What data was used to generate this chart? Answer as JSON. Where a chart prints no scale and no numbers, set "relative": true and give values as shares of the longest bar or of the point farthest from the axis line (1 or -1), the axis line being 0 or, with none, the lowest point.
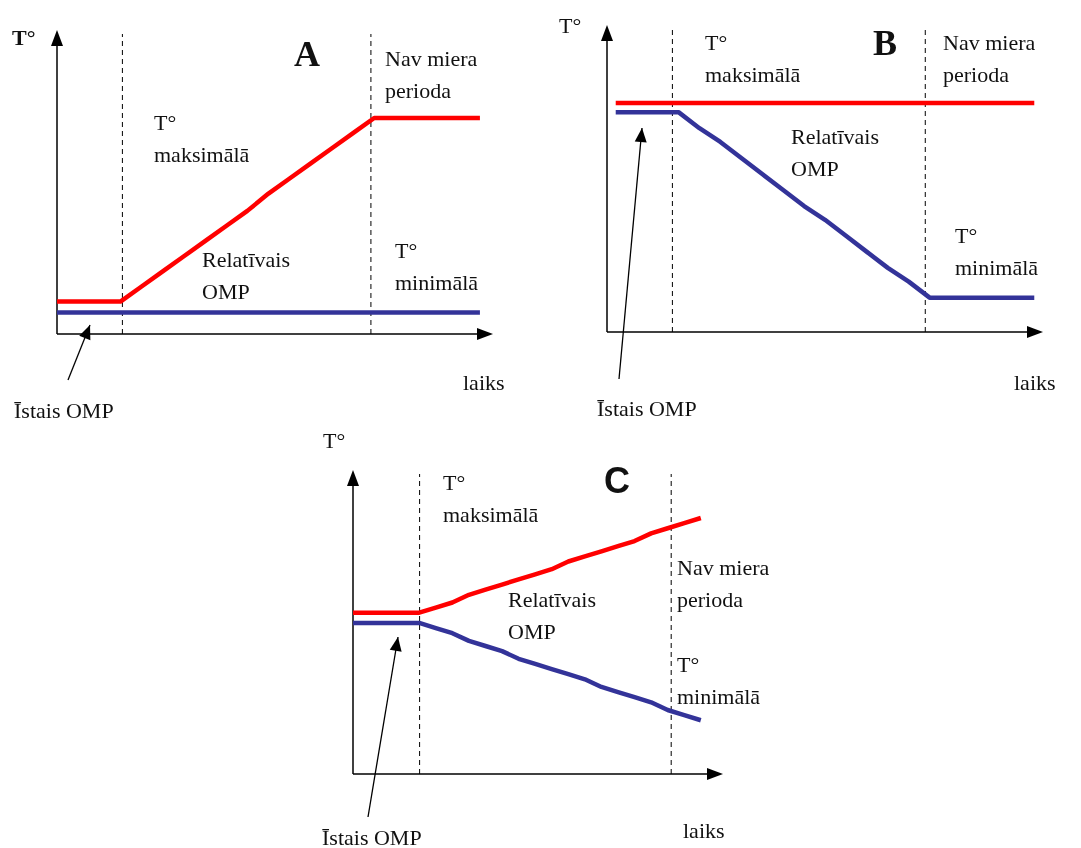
{
  "chart_data": [
    {
      "type": "line",
      "title": "A",
      "xlabel": "laiks",
      "ylabel": "T°",
      "relative": true,
      "line_style": "solid",
      "categories": [
        null,
        null,
        null,
        null,
        null,
        null,
        null,
        null,
        null,
        null,
        null,
        null,
        null,
        null,
        null,
        null,
        null,
        null,
        null,
        null,
        null
      ],
      "series": [
        {
          "name": "T° maksimālā",
          "color": "#ff0000",
          "values": [
            0.15,
            0.15,
            0.15,
            0.15,
            0.22,
            0.29,
            0.36,
            0.43,
            0.5,
            0.57,
            0.65,
            0.72,
            0.79,
            0.86,
            0.93,
            1,
            1,
            1,
            1,
            1,
            1
          ]
        },
        {
          "name": "T° minimālā",
          "color": "#333399",
          "values": [
            0.1,
            0.1,
            0.1,
            0.1,
            0.1,
            0.1,
            0.1,
            0.1,
            0.1,
            0.1,
            0.1,
            0.1,
            0.1,
            0.1,
            0.1,
            0.1,
            0.1,
            0.1,
            0.1,
            0.1,
            0.1
          ]
        }
      ],
      "annotations": [
        "Nav miera perioda",
        "Relatīvais OMP",
        "Īstais OMP"
      ]
    },
    {
      "type": "line",
      "title": "B",
      "xlabel": "laiks",
      "ylabel": "T°",
      "relative": true,
      "line_style": "solid",
      "categories": [
        null,
        null,
        null,
        null,
        null,
        null,
        null,
        null,
        null,
        null,
        null,
        null,
        null,
        null,
        null,
        null,
        null,
        null,
        null,
        null,
        null
      ],
      "series": [
        {
          "name": "T° maksimālā",
          "color": "#ff0000",
          "values": [
            1,
            1,
            1,
            1,
            1,
            1,
            1,
            1,
            1,
            1,
            1,
            1,
            1,
            1,
            1,
            1,
            1,
            1,
            1,
            1,
            1
          ]
        },
        {
          "name": "T° minimālā",
          "color": "#333399",
          "values": [
            0.96,
            0.96,
            0.96,
            0.96,
            0.89,
            0.83,
            0.76,
            0.69,
            0.62,
            0.55,
            0.49,
            0.42,
            0.35,
            0.28,
            0.22,
            0.15,
            0.15,
            0.15,
            0.15,
            0.15,
            0.15
          ]
        }
      ],
      "annotations": [
        "Nav miera perioda",
        "Relatīvais OMP",
        "Īstais OMP"
      ]
    },
    {
      "type": "line",
      "title": "C",
      "xlabel": "laiks",
      "ylabel": "T°",
      "relative": true,
      "line_style": "solid",
      "categories": [
        null,
        null,
        null,
        null,
        null,
        null,
        null,
        null,
        null,
        null,
        null,
        null,
        null,
        null,
        null,
        null,
        null,
        null,
        null,
        null,
        null,
        null
      ],
      "series": [
        {
          "name": "T° maksimālā",
          "color": "#ff0000",
          "values": [
            0.63,
            0.63,
            0.63,
            0.63,
            0.63,
            0.65,
            0.67,
            0.7,
            0.72,
            0.74,
            0.76,
            0.78,
            0.8,
            0.83,
            0.85,
            0.87,
            0.89,
            0.91,
            0.94,
            0.96,
            0.98,
            1
          ]
        },
        {
          "name": "T° minimālā",
          "color": "#333399",
          "values": [
            0.59,
            0.59,
            0.59,
            0.59,
            0.59,
            0.57,
            0.55,
            0.52,
            0.5,
            0.48,
            0.45,
            0.43,
            0.41,
            0.39,
            0.37,
            0.34,
            0.32,
            0.3,
            0.28,
            0.25,
            0.23,
            0.21
          ]
        }
      ],
      "annotations": [
        "Nav miera perioda",
        "Relatīvais OMP",
        "Īstais OMP"
      ]
    }
  ]
}
